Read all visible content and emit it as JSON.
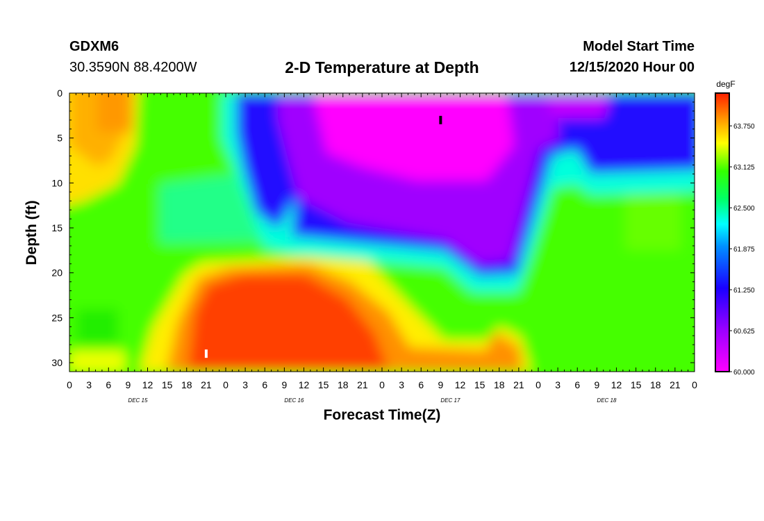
{
  "header": {
    "station": "GDXM6",
    "coords": "30.3590N 88.4200W",
    "title": "2-D Temperature at Depth",
    "model_start_label": "Model Start Time",
    "model_start_value": "12/15/2020 Hour 00"
  },
  "chart_data": {
    "type": "heatmap",
    "title": "2-D Temperature at Depth",
    "xlabel": "Forecast Time(Z)",
    "ylabel": "Depth (ft)",
    "x_ticks": [
      "0",
      "3",
      "6",
      "9",
      "12",
      "15",
      "18",
      "21",
      "0",
      "3",
      "6",
      "9",
      "12",
      "15",
      "18",
      "21",
      "0",
      "3",
      "6",
      "9",
      "12",
      "15",
      "18",
      "21",
      "0",
      "3",
      "6",
      "9",
      "12",
      "15",
      "18",
      "21",
      "0"
    ],
    "day_labels": [
      "DEC 15",
      "DEC 16",
      "DEC 17",
      "DEC 18"
    ],
    "y_ticks": [
      "0",
      "5",
      "10",
      "15",
      "20",
      "25",
      "30"
    ],
    "ylim": [
      0,
      31
    ],
    "colorbar": {
      "unit": "degF",
      "range": [
        60.0,
        64.25
      ],
      "tick_labels": [
        "63.750",
        "63.125",
        "62.500",
        "61.875",
        "61.250",
        "60.625",
        "60.000"
      ],
      "tick_values": [
        63.75,
        63.125,
        62.5,
        61.875,
        61.25,
        60.625,
        60.0
      ]
    },
    "annotations": [
      {
        "x_hour": 57,
        "depth_ft": 3,
        "color": "black"
      },
      {
        "x_hour": 21,
        "depth_ft": 29,
        "color": "white"
      }
    ]
  }
}
